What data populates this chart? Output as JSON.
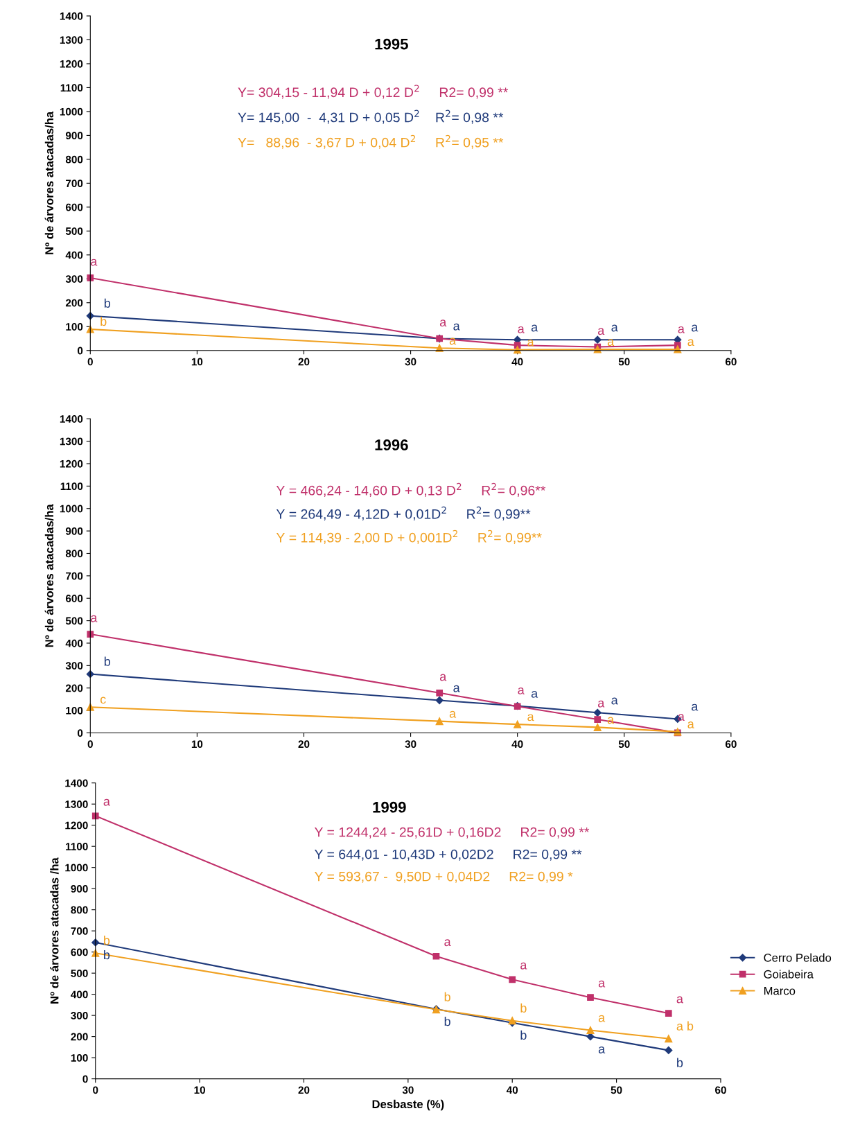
{
  "chart_data": [
    {
      "type": "line",
      "title": "1995",
      "ylabel": "Nº de árvores atacadas/ha",
      "x": [
        0,
        32.7,
        40,
        47.5,
        55
      ],
      "xlim": [
        0,
        60
      ],
      "xticks": [
        0,
        10,
        20,
        30,
        40,
        50,
        60
      ],
      "ylim": [
        0,
        1400
      ],
      "yticks": [
        0,
        100,
        200,
        300,
        400,
        500,
        600,
        700,
        800,
        900,
        1000,
        1100,
        1200,
        1300,
        1400
      ],
      "grid": false,
      "legend": false,
      "annotations": [
        "Y= 304,15 - 11,94 D + 0,12 D$^{2}$     R2= 0,99 **",
        "Y= 145,00  -  4,31 D + 0,05 D$^{2}$    R$^{2}$= 0,98 **",
        "Y=   88,96  - 3,67 D + 0,04 D$^{2}$     R$^{2}$= 0,95 **"
      ],
      "series": [
        {
          "color": "#1f3a7a",
          "marker": "diamond",
          "values": [
            145,
            50,
            45,
            45,
            45
          ],
          "value_labels": [
            "b",
            "a",
            "a",
            "a",
            "a"
          ]
        },
        {
          "color": "#c0306a",
          "marker": "square",
          "values": [
            304,
            50,
            22,
            15,
            22
          ],
          "value_labels": [
            "a",
            "a",
            "a",
            "a",
            "a"
          ]
        },
        {
          "color": "#f0a020",
          "marker": "triangle",
          "values": [
            89,
            10,
            3,
            5,
            5
          ],
          "value_labels": [
            "b",
            "a",
            "a",
            "a",
            "a"
          ]
        }
      ]
    },
    {
      "type": "line",
      "title": "1996",
      "ylabel": "Nº de árvores atacadas/ha",
      "x": [
        0,
        32.7,
        40,
        47.5,
        55
      ],
      "xlim": [
        0,
        60
      ],
      "xticks": [
        0,
        10,
        20,
        30,
        40,
        50,
        60
      ],
      "ylim": [
        0,
        1400
      ],
      "yticks": [
        0,
        100,
        200,
        300,
        400,
        500,
        600,
        700,
        800,
        900,
        1000,
        1100,
        1200,
        1300,
        1400
      ],
      "grid": false,
      "legend": false,
      "annotations": [
        "Y = 466,24 - 14,60 D + 0,13 D$^{2}$     R$^{2}$= 0,96**",
        "Y = 264,49 - 4,12D + 0,01D$^{2}$     R$^{2}$= 0,99**",
        "Y = 114,39 - 2,00 D + 0,001D$^{2}$     R$^{2}$= 0,99**"
      ],
      "series": [
        {
          "color": "#1f3a7a",
          "marker": "diamond",
          "values": [
            262,
            145,
            120,
            90,
            62
          ],
          "value_labels": [
            "b",
            "a",
            "a",
            "a",
            "a"
          ]
        },
        {
          "color": "#c0306a",
          "marker": "square",
          "values": [
            440,
            178,
            118,
            60,
            0
          ],
          "value_labels": [
            "a",
            "a",
            "a",
            "a",
            "a"
          ]
        },
        {
          "color": "#f0a020",
          "marker": "triangle",
          "values": [
            115,
            52,
            38,
            25,
            5
          ],
          "value_labels": [
            "c",
            "a",
            "a",
            "a",
            "a"
          ]
        }
      ]
    },
    {
      "type": "line",
      "title": "1999",
      "ylabel": "Nº de árvores atacadas /ha",
      "xlabel": "Desbaste (%)",
      "x": [
        0,
        32.7,
        40,
        47.5,
        55
      ],
      "xlim": [
        0,
        60
      ],
      "xticks": [
        0,
        10,
        20,
        30,
        40,
        50,
        60
      ],
      "ylim": [
        0,
        1400
      ],
      "yticks": [
        0,
        100,
        200,
        300,
        400,
        500,
        600,
        700,
        800,
        900,
        1000,
        1100,
        1200,
        1300,
        1400
      ],
      "grid": false,
      "legend": "right",
      "annotations": [
        "Y = 1244,24 - 25,61D + 0,16D2     R2= 0,99 **",
        "Y = 644,01 - 10,43D + 0,02D2     R2= 0,99 **",
        "Y = 593,67 -  9,50D + 0,04D2     R2= 0,99 *"
      ],
      "series": [
        {
          "name": "Cerro Pelado",
          "color": "#1f3a7a",
          "marker": "diamond",
          "values": [
            645,
            330,
            265,
            200,
            135
          ],
          "value_labels": [
            "b",
            "b",
            "b",
            "a",
            "b"
          ]
        },
        {
          "name": "Goiabeira",
          "color": "#c0306a",
          "marker": "square",
          "values": [
            1244,
            580,
            470,
            385,
            310
          ],
          "value_labels": [
            "a",
            "a",
            "a",
            "a",
            "a"
          ]
        },
        {
          "name": "Marco",
          "color": "#f0a020",
          "marker": "triangle",
          "values": [
            595,
            328,
            275,
            230,
            190
          ],
          "value_labels": [
            "b",
            "b",
            "b",
            "a",
            "a b"
          ]
        }
      ]
    }
  ]
}
